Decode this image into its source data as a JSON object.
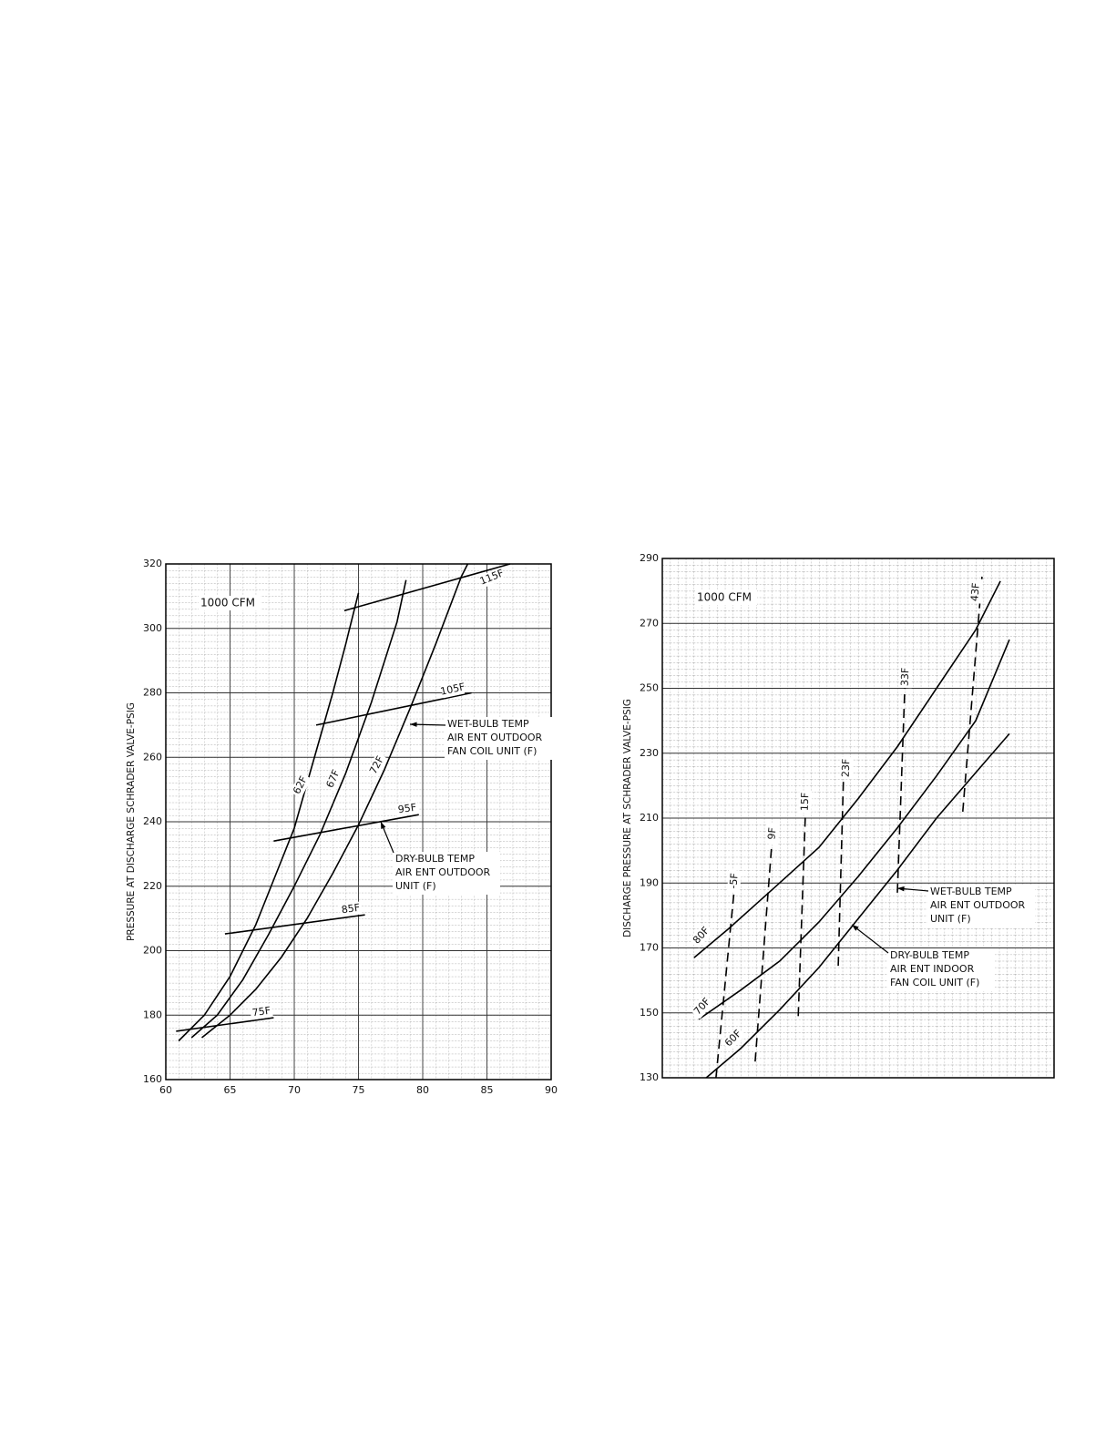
{
  "chart_data": [
    {
      "type": "line",
      "ylabel": "PRESSURE AT DISCHARGE SCHRADER VALVE-PSIG",
      "note": "1000 CFM",
      "xlim": [
        60,
        90
      ],
      "xticks": [
        60,
        65,
        70,
        75,
        80,
        85,
        90
      ],
      "ylim": [
        160,
        320
      ],
      "yticks": [
        160,
        180,
        200,
        220,
        240,
        260,
        280,
        300,
        320
      ],
      "grid": true,
      "series": [
        {
          "name": "62F",
          "color": "#000",
          "style": "solid",
          "x": [
            61,
            63,
            65,
            67,
            69,
            70,
            71,
            72,
            73,
            74,
            75
          ],
          "values": [
            172,
            180,
            192,
            208,
            228,
            238,
            252,
            266,
            280,
            295,
            311
          ]
        },
        {
          "name": "67F",
          "color": "#000",
          "style": "solid",
          "x": [
            62,
            64,
            66,
            68,
            70,
            72,
            74,
            76,
            78,
            78.7
          ],
          "values": [
            173,
            180,
            191,
            205,
            220,
            236,
            255,
            277,
            302,
            315
          ]
        },
        {
          "name": "72F",
          "color": "#000",
          "style": "solid",
          "x": [
            62.8,
            65,
            67,
            69,
            71,
            73,
            75,
            77,
            79,
            81,
            83,
            83.5
          ],
          "values": [
            173,
            180,
            188,
            198,
            210,
            224,
            239,
            256,
            275,
            295,
            316,
            320
          ]
        },
        {
          "name": "75F",
          "color": "#000",
          "style": "solid",
          "x": [
            60.8,
            68.4
          ],
          "values": [
            175,
            179.2
          ]
        },
        {
          "name": "85F",
          "color": "#000",
          "style": "solid",
          "x": [
            64.6,
            75.5
          ],
          "values": [
            205.2,
            211.1
          ]
        },
        {
          "name": "95F",
          "color": "#000",
          "style": "solid",
          "x": [
            68.4,
            79.7
          ],
          "values": [
            234,
            242.2
          ]
        },
        {
          "name": "105F",
          "color": "#000",
          "style": "solid",
          "x": [
            71.7,
            83.8
          ],
          "values": [
            270,
            280
          ]
        },
        {
          "name": "115F",
          "color": "#000",
          "style": "solid",
          "x": [
            73.9,
            86.8
          ],
          "values": [
            305.5,
            320
          ]
        }
      ],
      "annotations": [
        {
          "lines": [
            "WET-BULB TEMP",
            "AIR ENT OUTDOOR",
            "FAN COIL UNIT (F)"
          ]
        },
        {
          "lines": [
            "DRY-BULB TEMP",
            "AIR ENT OUTDOOR",
            "UNIT (F)"
          ]
        }
      ]
    },
    {
      "type": "line",
      "ylabel": "DISCHARGE PRESSURE AT SCHRADER VALVE-PSIG",
      "note": "1000 CFM",
      "xlim": [
        0,
        10
      ],
      "ylim": [
        130,
        290
      ],
      "yticks": [
        130,
        150,
        170,
        190,
        210,
        230,
        250,
        270,
        290
      ],
      "grid": true,
      "series": [
        {
          "name": "80F",
          "color": "#000",
          "style": "solid",
          "x": [
            0.81,
            1.7,
            2.9,
            4,
            5,
            6,
            7,
            8,
            8.63
          ],
          "values": [
            167,
            176,
            189,
            201,
            216,
            232,
            250,
            268,
            283
          ]
        },
        {
          "name": "70F",
          "color": "#000",
          "style": "solid",
          "x": [
            0.93,
            2,
            3,
            4,
            5,
            6,
            7,
            8,
            8.86
          ],
          "values": [
            148,
            157,
            166,
            178,
            192,
            207,
            223,
            240,
            265
          ]
        },
        {
          "name": "60F",
          "color": "#000",
          "style": "solid",
          "x": [
            1.12,
            2,
            3,
            4,
            5,
            6,
            7,
            8,
            8.86
          ],
          "values": [
            130,
            139,
            151,
            164,
            179,
            194,
            210,
            224,
            236
          ]
        },
        {
          "name": "-5F",
          "color": "#000",
          "style": "dashed",
          "x": [
            1.37,
            1.84
          ],
          "values": [
            130,
            188.4
          ]
        },
        {
          "name": "9F",
          "color": "#000",
          "style": "dashed",
          "x": [
            2.37,
            2.81
          ],
          "values": [
            135,
            204.4
          ]
        },
        {
          "name": "15F",
          "color": "#000",
          "style": "dashed",
          "x": [
            3.47,
            3.65
          ],
          "values": [
            149,
            210.8
          ]
        },
        {
          "name": "23F",
          "color": "#000",
          "style": "dashed",
          "x": [
            4.49,
            4.63
          ],
          "values": [
            164.5,
            224.9
          ]
        },
        {
          "name": "33F",
          "color": "#000",
          "style": "dashed",
          "x": [
            6.0,
            6.19
          ],
          "values": [
            187,
            250.1
          ]
        },
        {
          "name": "43F",
          "color": "#000",
          "style": "dashed",
          "x": [
            7.67,
            8.16
          ],
          "values": [
            212,
            284.4
          ]
        }
      ],
      "annotations": [
        {
          "lines": [
            "WET-BULB TEMP",
            "AIR ENT OUTDOOR",
            "UNIT (F)"
          ]
        },
        {
          "lines": [
            "DRY-BULB TEMP",
            "AIR ENT INDOOR",
            "FAN COIL UNIT (F)"
          ]
        }
      ]
    }
  ]
}
